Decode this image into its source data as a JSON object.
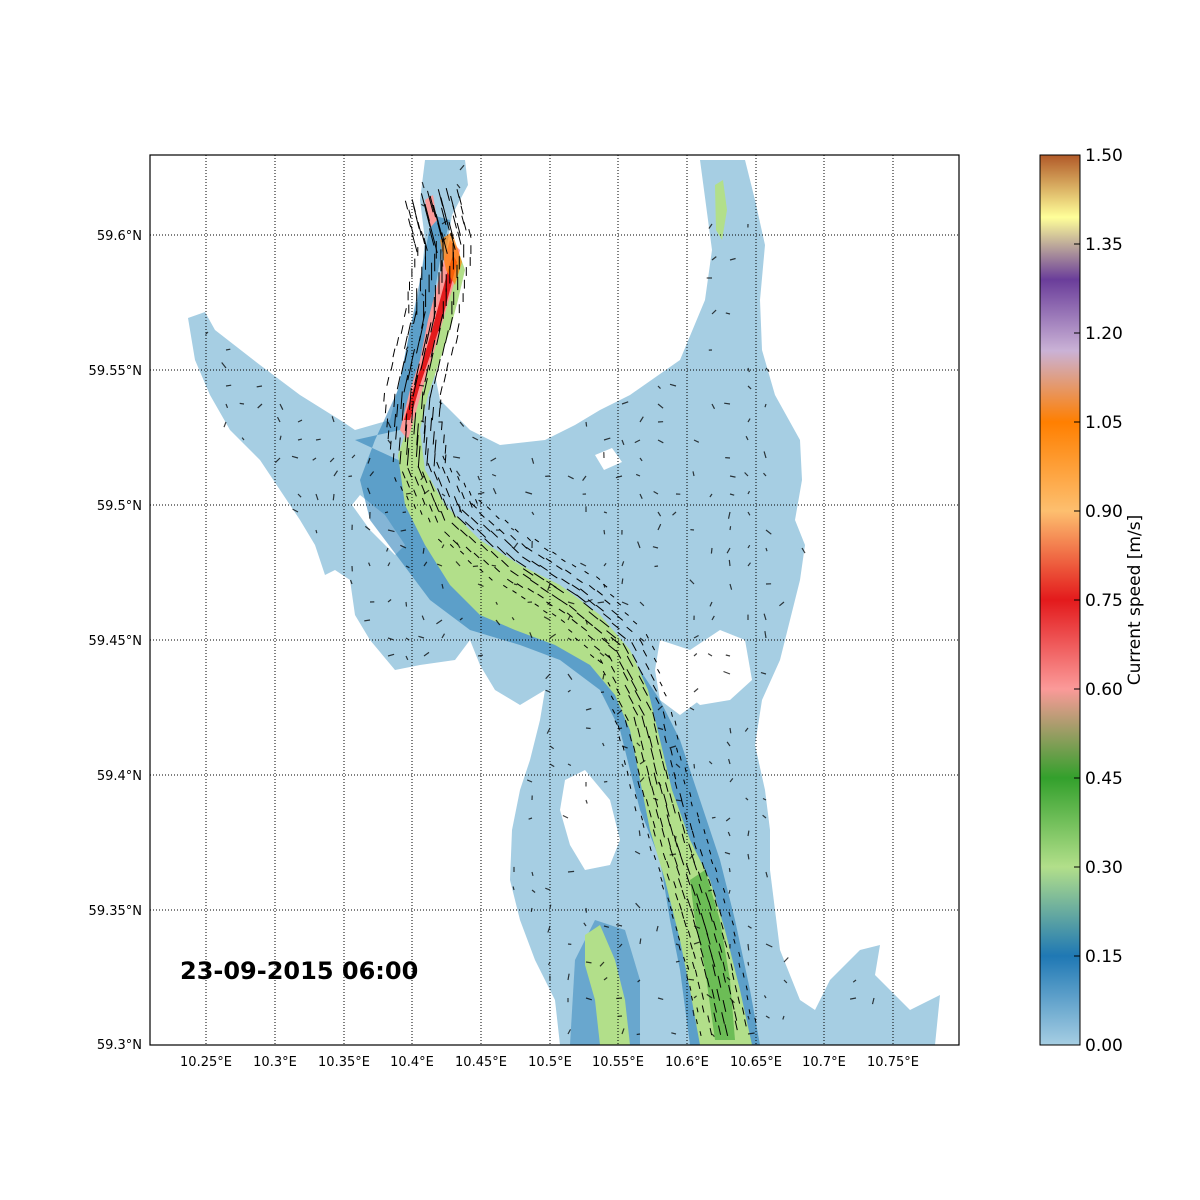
{
  "map": {
    "timestamp": "23-09-2015 06:00",
    "lon_ticks": [
      "10.25°E",
      "10.3°E",
      "10.35°E",
      "10.4°E",
      "10.45°E",
      "10.5°E",
      "10.55°E",
      "10.6°E",
      "10.65°E",
      "10.7°E",
      "10.75°E"
    ],
    "lat_ticks": [
      "59.6°N",
      "59.55°N",
      "59.5°N",
      "59.45°N",
      "59.4°N",
      "59.35°N",
      "59.3°N"
    ],
    "lon_range": [
      10.21,
      10.8
    ],
    "lat_range": [
      59.3,
      59.63
    ],
    "grid": true,
    "variable": "current speed",
    "vectors": true
  },
  "colorbar": {
    "label": "Current speed [m/s]",
    "ticks": [
      "1.50",
      "1.35",
      "1.20",
      "1.05",
      "0.90",
      "0.75",
      "0.60",
      "0.45",
      "0.30",
      "0.15",
      "0.00"
    ],
    "range": [
      0.0,
      1.5
    ],
    "colors": [
      "#a6cee3",
      "#1f78b4",
      "#b2df8a",
      "#33a02c",
      "#fb9a99",
      "#e31a1c",
      "#fdbf6f",
      "#ff7f00",
      "#cab2d6",
      "#6a3d9a",
      "#ffff99",
      "#b15928"
    ]
  }
}
